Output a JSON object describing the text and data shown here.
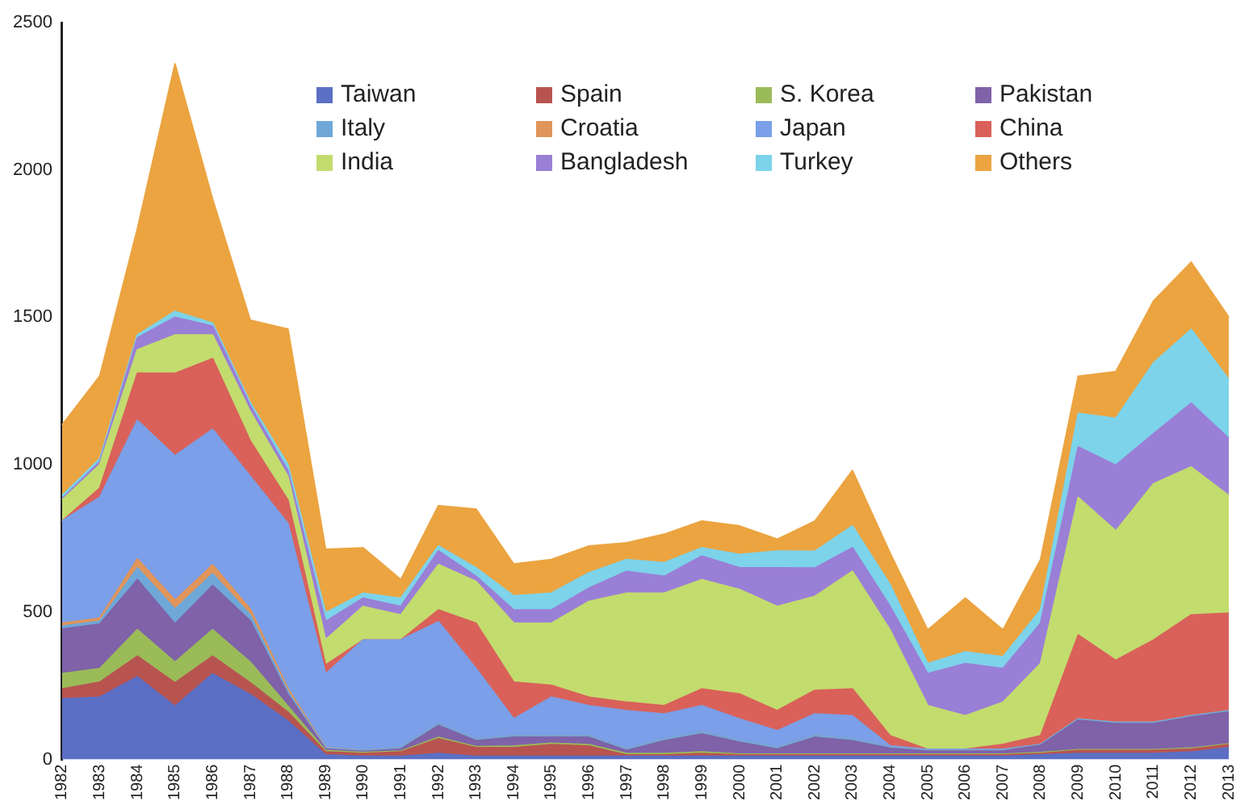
{
  "chart_data": {
    "type": "area",
    "stacked": true,
    "legend": "top",
    "grid": false,
    "marker": "none",
    "categories": [
      "1982",
      "1983",
      "1984",
      "1985",
      "1986",
      "1987",
      "1988",
      "1989",
      "1990",
      "1991",
      "1992",
      "1993",
      "1994",
      "1995",
      "1996",
      "1997",
      "1998",
      "1999",
      "2000",
      "2001",
      "2002",
      "2003",
      "2004",
      "2005",
      "2006",
      "2007",
      "2008",
      "2009",
      "2010",
      "2011",
      "2012",
      "2013"
    ],
    "ylim": [
      0,
      2500
    ],
    "yticks": [
      0,
      500,
      1000,
      1500,
      2000,
      2500
    ],
    "series": [
      {
        "name": "Taiwan",
        "color": "#5b6fc4",
        "values": [
          205,
          211,
          280,
          180,
          290,
          220,
          130,
          15,
          10,
          10,
          20,
          10,
          10,
          10,
          10,
          10,
          10,
          10,
          10,
          10,
          10,
          10,
          10,
          10,
          10,
          10,
          15,
          20,
          20,
          20,
          25,
          40
        ]
      },
      {
        "name": "Spain",
        "color": "#b85450",
        "values": [
          34,
          51,
          70,
          80,
          60,
          40,
          30,
          10,
          10,
          15,
          50,
          30,
          30,
          40,
          35,
          5,
          5,
          10,
          5,
          5,
          5,
          5,
          5,
          5,
          5,
          5,
          5,
          10,
          10,
          10,
          10,
          10
        ]
      },
      {
        "name": "S. Korea",
        "color": "#9bbb59",
        "values": [
          52,
          46,
          90,
          70,
          90,
          70,
          20,
          5,
          3,
          3,
          5,
          3,
          5,
          5,
          5,
          5,
          5,
          5,
          3,
          3,
          3,
          3,
          3,
          3,
          3,
          3,
          3,
          3,
          3,
          3,
          3,
          3
        ]
      },
      {
        "name": "Pakistan",
        "color": "#7f62a8",
        "values": [
          151,
          151,
          170,
          130,
          150,
          140,
          40,
          5,
          4,
          7,
          40,
          20,
          30,
          20,
          25,
          10,
          43,
          61,
          40,
          17,
          57,
          45,
          20,
          10,
          10,
          10,
          25,
          100,
          88,
          88,
          106,
          108
        ]
      },
      {
        "name": "Italy",
        "color": "#6fa8d8",
        "values": [
          10,
          10,
          40,
          50,
          40,
          20,
          10,
          3,
          3,
          5,
          5,
          5,
          5,
          5,
          5,
          4,
          5,
          5,
          5,
          5,
          5,
          5,
          3,
          3,
          3,
          3,
          3,
          4,
          4,
          4,
          4,
          4
        ]
      },
      {
        "name": "Croatia",
        "color": "#e0955a",
        "values": [
          10,
          10,
          30,
          30,
          30,
          20,
          10,
          2,
          0,
          0,
          0,
          0,
          0,
          0,
          0,
          0,
          0,
          0,
          0,
          0,
          0,
          0,
          0,
          0,
          0,
          0,
          0,
          0,
          0,
          0,
          0,
          0
        ]
      },
      {
        "name": "Japan",
        "color": "#7b9fe8",
        "values": [
          347,
          410,
          470,
          490,
          460,
          450,
          560,
          250,
          375,
          365,
          347,
          240,
          57,
          131,
          102,
          131,
          86,
          91,
          74,
          57,
          74,
          80,
          5,
          3,
          3,
          3,
          0,
          0,
          0,
          0,
          0,
          0
        ]
      },
      {
        "name": "China",
        "color": "#d9615a",
        "values": [
          0,
          31,
          160,
          280,
          240,
          120,
          80,
          30,
          0,
          0,
          40,
          154,
          125,
          40,
          29,
          29,
          28,
          57,
          85,
          68,
          80,
          91,
          34,
          0,
          0,
          17,
          29,
          285,
          211,
          280,
          342,
          331
        ]
      },
      {
        "name": "India",
        "color": "#c3dc6e",
        "values": [
          71,
          80,
          80,
          130,
          80,
          100,
          80,
          86,
          114,
          85,
          154,
          142,
          200,
          211,
          325,
          370,
          382,
          371,
          354,
          354,
          319,
          399,
          359,
          148,
          114,
          143,
          245,
          467,
          439,
          530,
          502,
          399
        ]
      },
      {
        "name": "Bangladesh",
        "color": "#9a7fd6",
        "values": [
          5,
          10,
          40,
          60,
          30,
          20,
          20,
          62,
          28,
          29,
          46,
          17,
          45,
          45,
          45,
          74,
          57,
          80,
          74,
          131,
          96,
          80,
          80,
          109,
          177,
          114,
          137,
          171,
          223,
          170,
          216,
          194
        ]
      },
      {
        "name": "Turkey",
        "color": "#7dd3ea",
        "values": [
          10,
          10,
          10,
          20,
          10,
          10,
          20,
          29,
          17,
          28,
          17,
          29,
          48,
          57,
          52,
          40,
          46,
          28,
          45,
          57,
          57,
          74,
          74,
          34,
          40,
          40,
          45,
          114,
          159,
          240,
          251,
          200
        ]
      },
      {
        "name": "Others",
        "color": "#eba440",
        "values": [
          240,
          280,
          360,
          840,
          420,
          280,
          460,
          216,
          154,
          63,
          137,
          199,
          108,
          114,
          91,
          57,
          97,
          91,
          97,
          40,
          102,
          188,
          107,
          114,
          182,
          91,
          171,
          126,
          159,
          210,
          228,
          211
        ]
      }
    ]
  }
}
